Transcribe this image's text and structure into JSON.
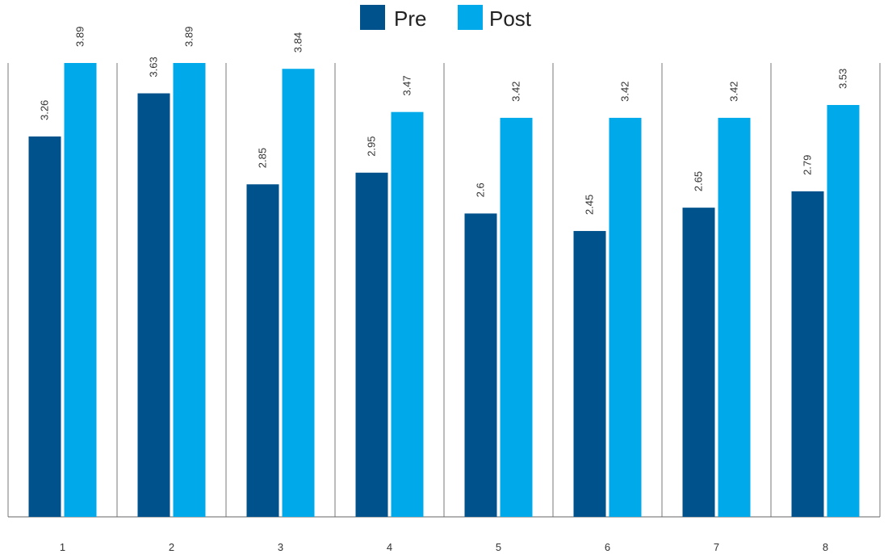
{
  "chart_data": {
    "type": "bar",
    "title": "",
    "xlabel": "",
    "ylabel": "",
    "categories": [
      "1",
      "2",
      "3",
      "4",
      "5",
      "6",
      "7",
      "8"
    ],
    "series": [
      {
        "name": "Pre",
        "color": "#00528c",
        "values": [
          3.26,
          3.63,
          2.85,
          2.95,
          2.6,
          2.45,
          2.65,
          2.79
        ],
        "labels": [
          "3.26",
          "3.63",
          "2.85",
          "2.95",
          "2.6",
          "2.45",
          "2.65",
          "2.79"
        ]
      },
      {
        "name": "Post",
        "color": "#00aaea",
        "values": [
          3.89,
          3.89,
          3.84,
          3.47,
          3.42,
          3.42,
          3.42,
          3.53
        ],
        "labels": [
          "3.89",
          "3.89",
          "3.84",
          "3.47",
          "3.42",
          "3.42",
          "3.42",
          "3.53"
        ]
      }
    ],
    "ylim": [
      0,
      4
    ],
    "y_axis_visible": false,
    "category_separators": true,
    "legend_position": "top-center",
    "data_labels": "rotated-vertical-above-bars"
  }
}
